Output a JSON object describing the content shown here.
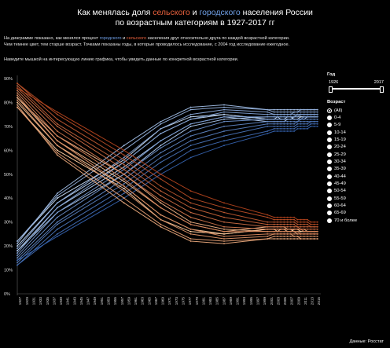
{
  "title": {
    "line1_a": "Как менялась доля ",
    "line1_rural": "сельского",
    "line1_b": " и ",
    "line1_urban": "городского",
    "line1_c": " населения России",
    "line2": "по возрастным категориям в 1927-2017 гг"
  },
  "description": {
    "p1_a": "На диаграмме показано, как менялся процент ",
    "p1_urban": "городского",
    "p1_b": " и ",
    "p1_rural": "сельского",
    "p1_c": " населения друг относительно друга по каждой возрастной категории.",
    "p2": "Чем темнее цвет, тем старше возраст.  Точками показаны годы, в которые проводилось исследование, с 2004 год исследование ежегодное.",
    "hint": "Наведите мышкой на интересующую линию графика, чтобы увидеть данные по конкретной возрастной категории."
  },
  "filter": {
    "year_title": "Год",
    "year_min": "1926",
    "year_max": "2017",
    "age_title": "Возраст",
    "age_options": [
      "(All)",
      "0-4",
      "5-9",
      "10-14",
      "15-19",
      "20-24",
      "25-29",
      "30-34",
      "35-39",
      "40-44",
      "45-49",
      "50-54",
      "55-59",
      "60-64",
      "65-69",
      "70 и более"
    ],
    "selected": "(All)"
  },
  "source": "Данные: Росстат",
  "colors": {
    "rural": "#e8603c",
    "urban": "#6f9fe6",
    "background": "#000000"
  },
  "chart_data": {
    "type": "line",
    "x": [
      1927,
      1939,
      1959,
      1970,
      1979,
      1989,
      2002,
      2004,
      2005,
      2006,
      2007,
      2008,
      2009,
      2010,
      2011,
      2012,
      2013,
      2014,
      2015,
      2016,
      2017
    ],
    "x_tick_labels": [
      "1927",
      "1929",
      "1931",
      "1933",
      "1935",
      "1937",
      "1939",
      "1941",
      "1943",
      "1945",
      "1947",
      "1949",
      "1951",
      "1953",
      "1955",
      "1957",
      "1959",
      "1961",
      "1963",
      "1965",
      "1967",
      "1969",
      "1971",
      "1973",
      "1975",
      "1977",
      "1979",
      "1981",
      "1983",
      "1985",
      "1987",
      "1989",
      "1991",
      "1993",
      "1995",
      "1997",
      "1999",
      "2001",
      "2003",
      "2005",
      "2007",
      "2009",
      "2011",
      "2013",
      "2015"
    ],
    "y_ticks": [
      "0%",
      "10%",
      "20%",
      "30%",
      "40%",
      "50%",
      "60%",
      "70%",
      "80%",
      "90%"
    ],
    "ylim": [
      0,
      90
    ],
    "series_groups": [
      {
        "group": "urban",
        "series": [
          {
            "values": [
              22,
              40,
              56,
              69,
              74,
              75,
              73,
              73,
              74,
              73,
              73,
              74,
              74,
              73,
              73,
              74,
              74,
              74,
              74,
              74,
              74
            ]
          },
          {
            "values": [
              20,
              38,
              55,
              67,
              73,
              75,
              73,
              73,
              73,
              73,
              73,
              73,
              73,
              74,
              74,
              74,
              74,
              74,
              74,
              74,
              74
            ]
          },
          {
            "values": [
              18,
              36,
              53,
              64,
              71,
              74,
              72,
              72,
              72,
              72,
              72,
              73,
              73,
              73,
              73,
              73,
              73,
              74,
              74,
              74,
              74
            ]
          },
          {
            "values": [
              18,
              34,
              50,
              62,
              70,
              73,
              74,
              74,
              74,
              74,
              74,
              74,
              74,
              74,
              75,
              75,
              75,
              75,
              75,
              75,
              75
            ]
          },
          {
            "values": [
              21,
              42,
              62,
              72,
              78,
              79,
              77,
              77,
              77,
              77,
              77,
              77,
              77,
              77,
              77,
              77,
              77,
              77,
              77,
              77,
              77
            ]
          },
          {
            "values": [
              22,
              41,
              60,
              71,
              77,
              78,
              77,
              76,
              76,
              76,
              76,
              76,
              76,
              76,
              76,
              77,
              77,
              77,
              77,
              77,
              77
            ]
          },
          {
            "values": [
              19,
              38,
              57,
              69,
              75,
              77,
              76,
              75,
              75,
              75,
              75,
              75,
              75,
              76,
              76,
              76,
              76,
              76,
              76,
              76,
              76
            ]
          },
          {
            "values": [
              17,
              36,
              55,
              67,
              73,
              76,
              75,
              75,
              75,
              75,
              75,
              75,
              75,
              75,
              75,
              75,
              75,
              75,
              75,
              75,
              75
            ]
          },
          {
            "values": [
              16,
              34,
              52,
              64,
              71,
              74,
              74,
              74,
              74,
              74,
              74,
              74,
              74,
              74,
              74,
              75,
              75,
              75,
              75,
              75,
              75
            ]
          },
          {
            "values": [
              15,
              32,
              50,
              61,
              68,
              72,
              73,
              73,
              73,
              73,
              73,
              73,
              73,
              73,
              73,
              73,
              74,
              74,
              74,
              74,
              74
            ]
          },
          {
            "values": [
              14,
              30,
              48,
              59,
              66,
              70,
              72,
              72,
              72,
              72,
              72,
              72,
              72,
              72,
              72,
              73,
              73,
              73,
              73,
              73,
              73
            ]
          },
          {
            "values": [
              13,
              29,
              46,
              57,
              64,
              68,
              71,
              71,
              71,
              71,
              71,
              71,
              71,
              71,
              72,
              72,
              72,
              72,
              72,
              72,
              72
            ]
          },
          {
            "values": [
              12,
              27,
              44,
              55,
              62,
              66,
              70,
              70,
              70,
              70,
              70,
              70,
              70,
              70,
              71,
              71,
              71,
              71,
              72,
              72,
              72
            ]
          },
          {
            "values": [
              12,
              25,
              42,
              52,
              60,
              64,
              68,
              69,
              69,
              69,
              69,
              69,
              69,
              69,
              70,
              70,
              70,
              70,
              71,
              71,
              71
            ]
          },
          {
            "values": [
              14,
              24,
              40,
              50,
              57,
              62,
              67,
              68,
              68,
              68,
              68,
              68,
              68,
              68,
              69,
              69,
              69,
              69,
              70,
              70,
              70
            ]
          }
        ]
      },
      {
        "group": "rural",
        "series": [
          {
            "values": [
              78,
              60,
              44,
              31,
              26,
              25,
              27,
              27,
              26,
              27,
              27,
              26,
              26,
              27,
              27,
              26,
              26,
              26,
              26,
              26,
              26
            ]
          },
          {
            "values": [
              80,
              62,
              45,
              33,
              27,
              25,
              27,
              27,
              27,
              27,
              27,
              27,
              27,
              26,
              26,
              26,
              26,
              26,
              26,
              26,
              26
            ]
          },
          {
            "values": [
              82,
              64,
              47,
              36,
              29,
              26,
              28,
              28,
              28,
              28,
              28,
              27,
              27,
              27,
              27,
              27,
              27,
              26,
              26,
              26,
              26
            ]
          },
          {
            "values": [
              82,
              66,
              50,
              38,
              30,
              27,
              26,
              26,
              26,
              26,
              26,
              26,
              26,
              26,
              25,
              25,
              25,
              25,
              25,
              25,
              25
            ]
          },
          {
            "values": [
              79,
              58,
              38,
              28,
              22,
              21,
              23,
              23,
              23,
              23,
              23,
              23,
              23,
              23,
              23,
              23,
              23,
              23,
              23,
              23,
              23
            ]
          },
          {
            "values": [
              78,
              59,
              40,
              29,
              23,
              22,
              23,
              24,
              24,
              24,
              24,
              24,
              24,
              24,
              24,
              23,
              23,
              23,
              23,
              23,
              23
            ]
          },
          {
            "values": [
              81,
              62,
              43,
              31,
              25,
              23,
              24,
              25,
              25,
              25,
              25,
              25,
              25,
              24,
              24,
              24,
              24,
              24,
              24,
              24,
              24
            ]
          },
          {
            "values": [
              83,
              64,
              45,
              33,
              27,
              24,
              25,
              25,
              25,
              25,
              25,
              25,
              25,
              25,
              25,
              25,
              25,
              25,
              25,
              25,
              25
            ]
          },
          {
            "values": [
              84,
              66,
              48,
              36,
              29,
              26,
              26,
              26,
              26,
              26,
              26,
              26,
              26,
              26,
              26,
              25,
              25,
              25,
              25,
              25,
              25
            ]
          },
          {
            "values": [
              85,
              68,
              50,
              39,
              32,
              28,
              27,
              27,
              27,
              27,
              27,
              27,
              27,
              27,
              27,
              27,
              26,
              26,
              26,
              26,
              26
            ]
          },
          {
            "values": [
              86,
              70,
              52,
              41,
              34,
              30,
              28,
              28,
              28,
              28,
              28,
              28,
              28,
              28,
              28,
              27,
              27,
              27,
              27,
              27,
              27
            ]
          },
          {
            "values": [
              87,
              71,
              54,
              43,
              36,
              32,
              29,
              29,
              29,
              29,
              29,
              29,
              29,
              29,
              28,
              28,
              28,
              28,
              28,
              28,
              28
            ]
          },
          {
            "values": [
              88,
              73,
              56,
              45,
              38,
              34,
              30,
              30,
              30,
              30,
              30,
              30,
              30,
              30,
              29,
              29,
              29,
              29,
              28,
              28,
              28
            ]
          },
          {
            "values": [
              88,
              75,
              58,
              48,
              40,
              36,
              32,
              31,
              31,
              31,
              31,
              31,
              31,
              31,
              30,
              30,
              30,
              30,
              29,
              29,
              29
            ]
          },
          {
            "values": [
              86,
              76,
              60,
              50,
              43,
              38,
              33,
              32,
              32,
              32,
              32,
              32,
              32,
              32,
              31,
              31,
              31,
              31,
              30,
              30,
              30
            ]
          }
        ]
      }
    ]
  }
}
